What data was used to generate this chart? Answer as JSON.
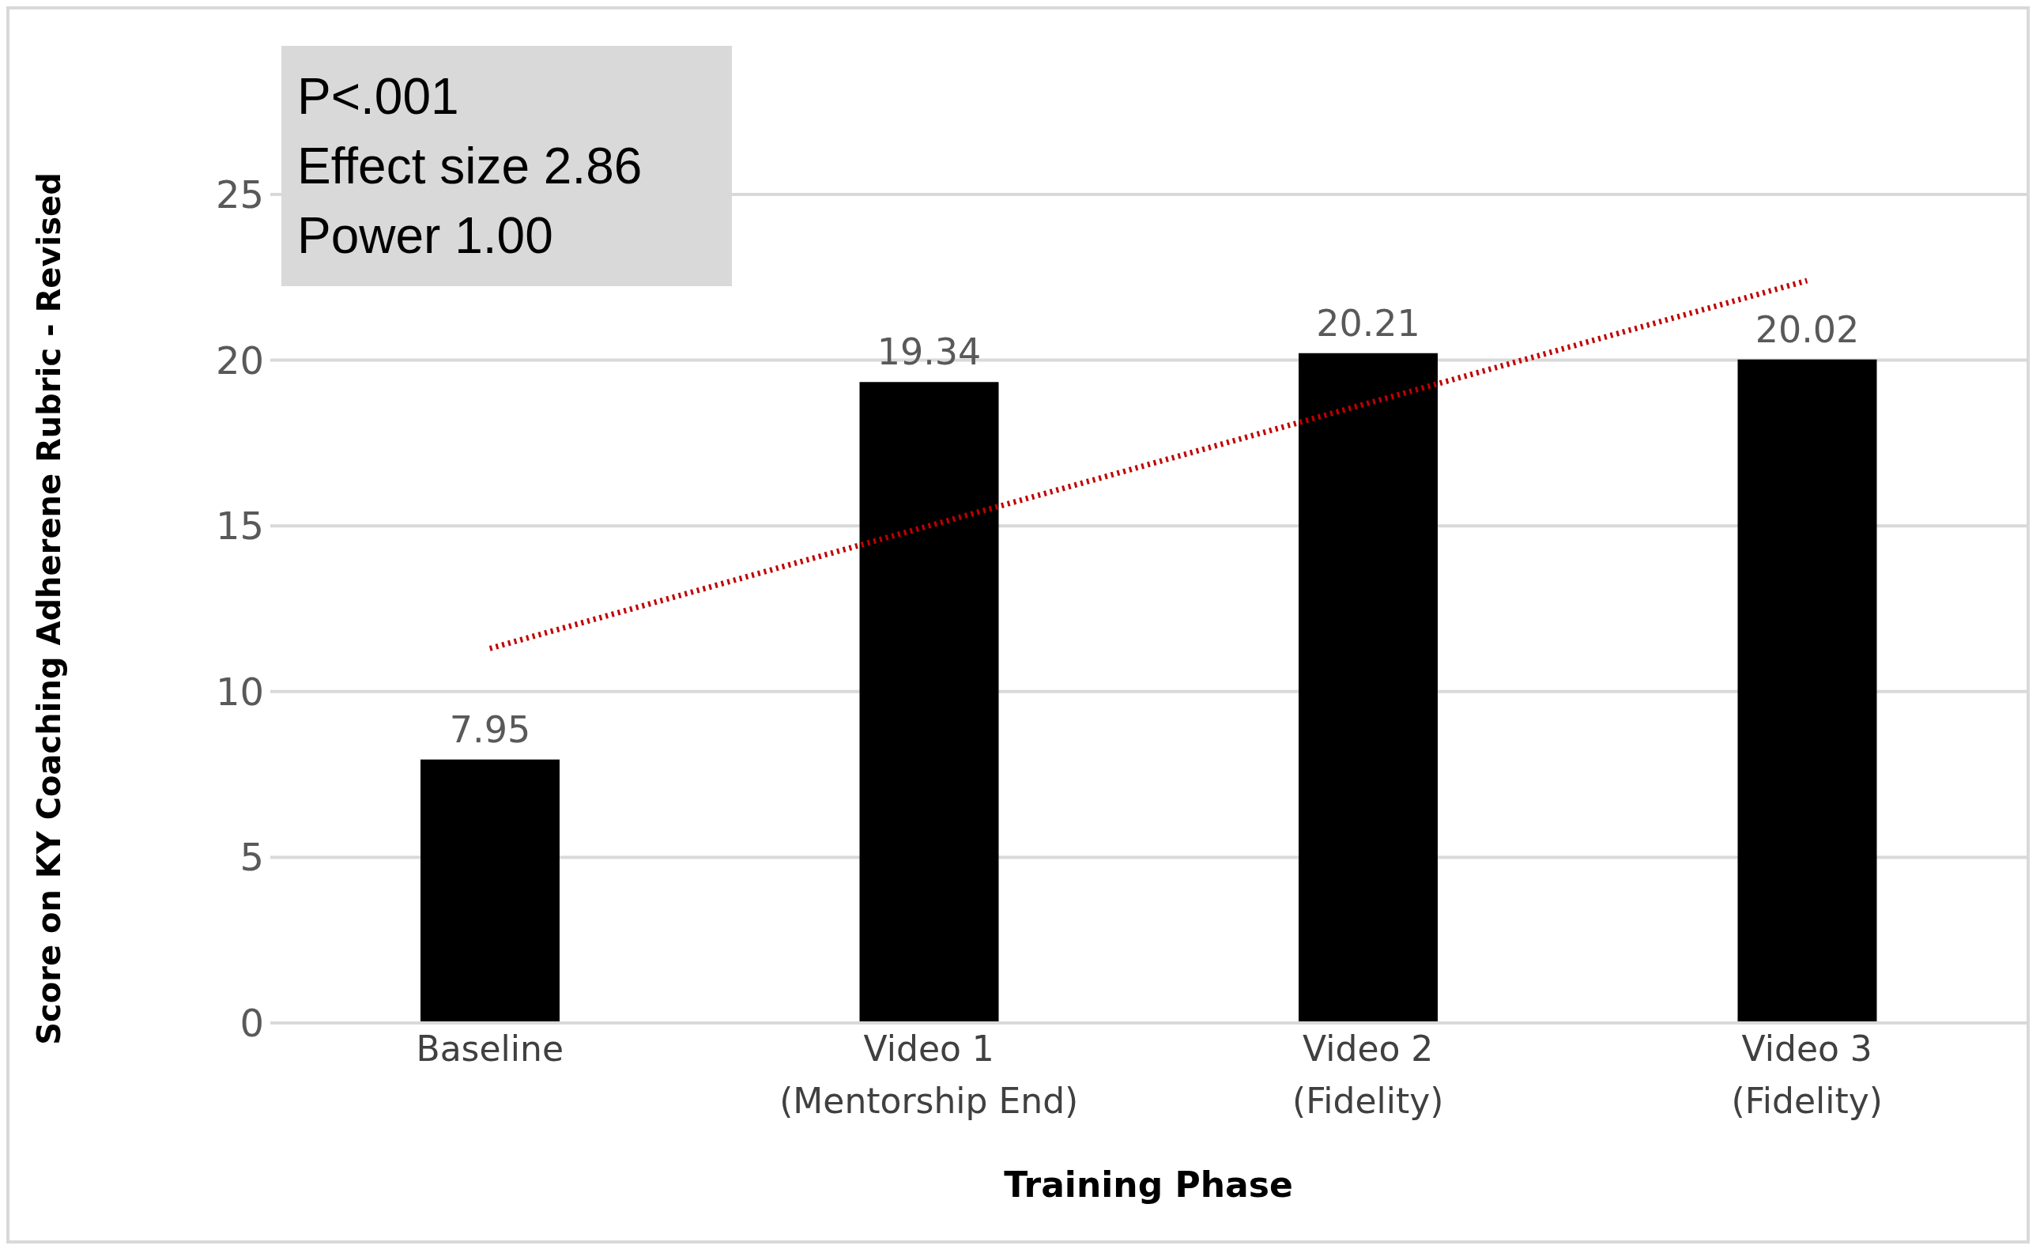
{
  "chart_data": {
    "type": "bar",
    "xlabel": "Training Phase",
    "ylabel": "Score on KY Coaching Adherene Rubric - Revised",
    "categories": [
      "Baseline",
      "Video 1 (Mentorship End)",
      "Video 2 (Fidelity)",
      "Video 3 (Fidelity)"
    ],
    "series": [
      {
        "color": "#000000",
        "values": [
          7.95,
          19.34,
          20.21,
          20.02
        ],
        "value_labels": [
          "7.95",
          "19.34",
          "20.21",
          "20.02"
        ]
      },
      {
        "type": "line",
        "color": "#c00000",
        "line_style": "dotted",
        "values": [
          11.3,
          15.0,
          18.7,
          22.4
        ]
      }
    ],
    "ylim": [
      0,
      25
    ],
    "yticks": [
      0,
      5,
      10,
      15,
      20,
      25
    ],
    "grid": "y",
    "legend": false,
    "annotations": [
      "P<.001",
      "Effect size 2.86",
      "Power 1.00"
    ]
  }
}
